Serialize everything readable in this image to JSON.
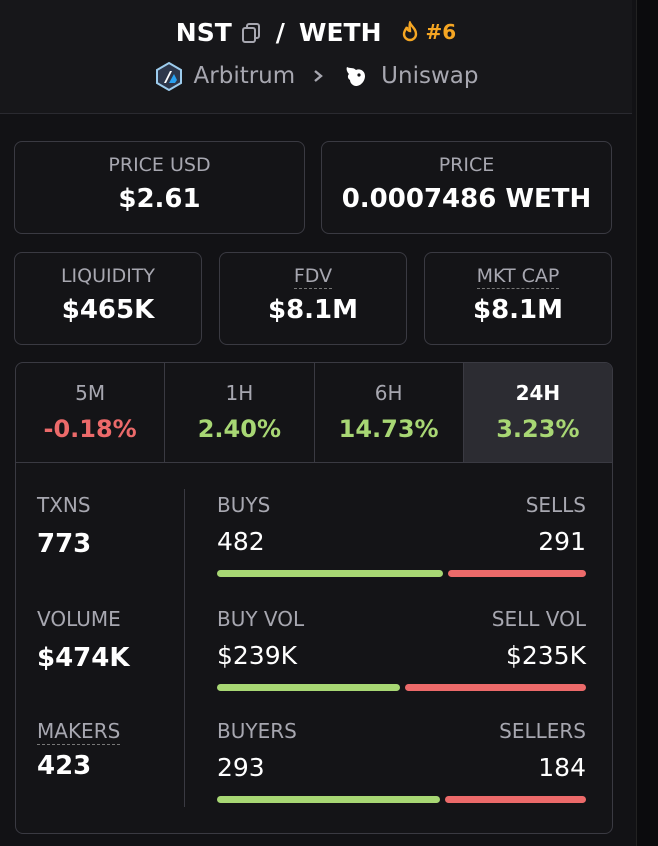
{
  "header": {
    "base_token": "NST",
    "separator": "/",
    "quote_token": "WETH",
    "rank": "#6",
    "chain": "Arbitrum",
    "dex": "Uniswap"
  },
  "price_usd": {
    "label": "PRICE USD",
    "value": "$2.61"
  },
  "price": {
    "label": "PRICE",
    "value": "0.0007486 WETH"
  },
  "liquidity": {
    "label": "LIQUIDITY",
    "value": "$465K"
  },
  "fdv": {
    "label": "FDV",
    "value": "$8.1M"
  },
  "mkt_cap": {
    "label": "MKT CAP",
    "value": "$8.1M"
  },
  "tabs": [
    {
      "label": "5M",
      "value": "-0.18%",
      "trend": "negative"
    },
    {
      "label": "1H",
      "value": "2.40%",
      "trend": "positive"
    },
    {
      "label": "6H",
      "value": "14.73%",
      "trend": "positive"
    },
    {
      "label": "24H",
      "value": "3.23%",
      "trend": "positive",
      "active": true
    }
  ],
  "stats": {
    "txns": {
      "label": "TXNS",
      "value": "773"
    },
    "volume": {
      "label": "VOLUME",
      "value": "$474K"
    },
    "makers": {
      "label": "MAKERS",
      "value": "423"
    },
    "buys_sells": {
      "left_label": "BUYS",
      "right_label": "SELLS",
      "left_value": "482",
      "right_value": "291",
      "buy_share": 0.62
    },
    "vol_split": {
      "left_label": "BUY VOL",
      "right_label": "SELL VOL",
      "left_value": "$239K",
      "right_value": "$235K",
      "buy_share": 0.504
    },
    "buyers_sellers": {
      "left_label": "BUYERS",
      "right_label": "SELLERS",
      "left_value": "293",
      "right_value": "184",
      "buy_share": 0.614
    }
  },
  "colors": {
    "positive": "#a8d774",
    "negative": "#ec6a6a",
    "rank": "#f5a623"
  }
}
